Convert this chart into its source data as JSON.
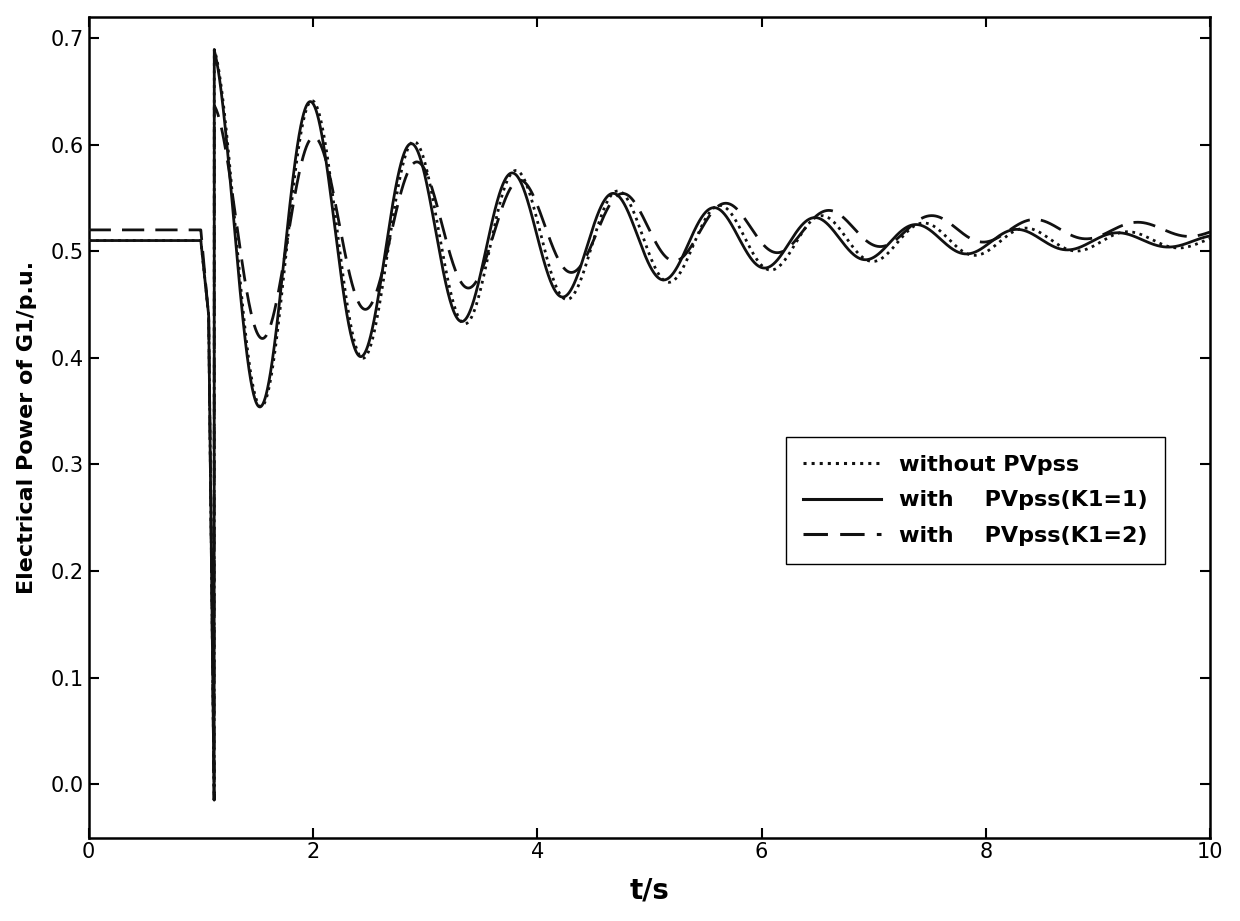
{
  "title": "",
  "xlabel": "t/s",
  "ylabel": "Electrical Power of G1/p.u.",
  "xlim": [
    0,
    10
  ],
  "ylim": [
    -0.05,
    0.72
  ],
  "yticks": [
    0.0,
    0.1,
    0.2,
    0.3,
    0.4,
    0.5,
    0.6,
    0.7
  ],
  "xticks": [
    0,
    2,
    4,
    6,
    8,
    10
  ],
  "steady_no_pss": 0.51,
  "steady_k1": 0.51,
  "steady_k2": 0.52,
  "fault_time": 1.0,
  "fault_clear": 1.12,
  "drop_val": -0.025,
  "intermediate_val": 0.44,
  "intermediate_time": 1.07,
  "background_color": "#ffffff",
  "line_color": "#111111"
}
